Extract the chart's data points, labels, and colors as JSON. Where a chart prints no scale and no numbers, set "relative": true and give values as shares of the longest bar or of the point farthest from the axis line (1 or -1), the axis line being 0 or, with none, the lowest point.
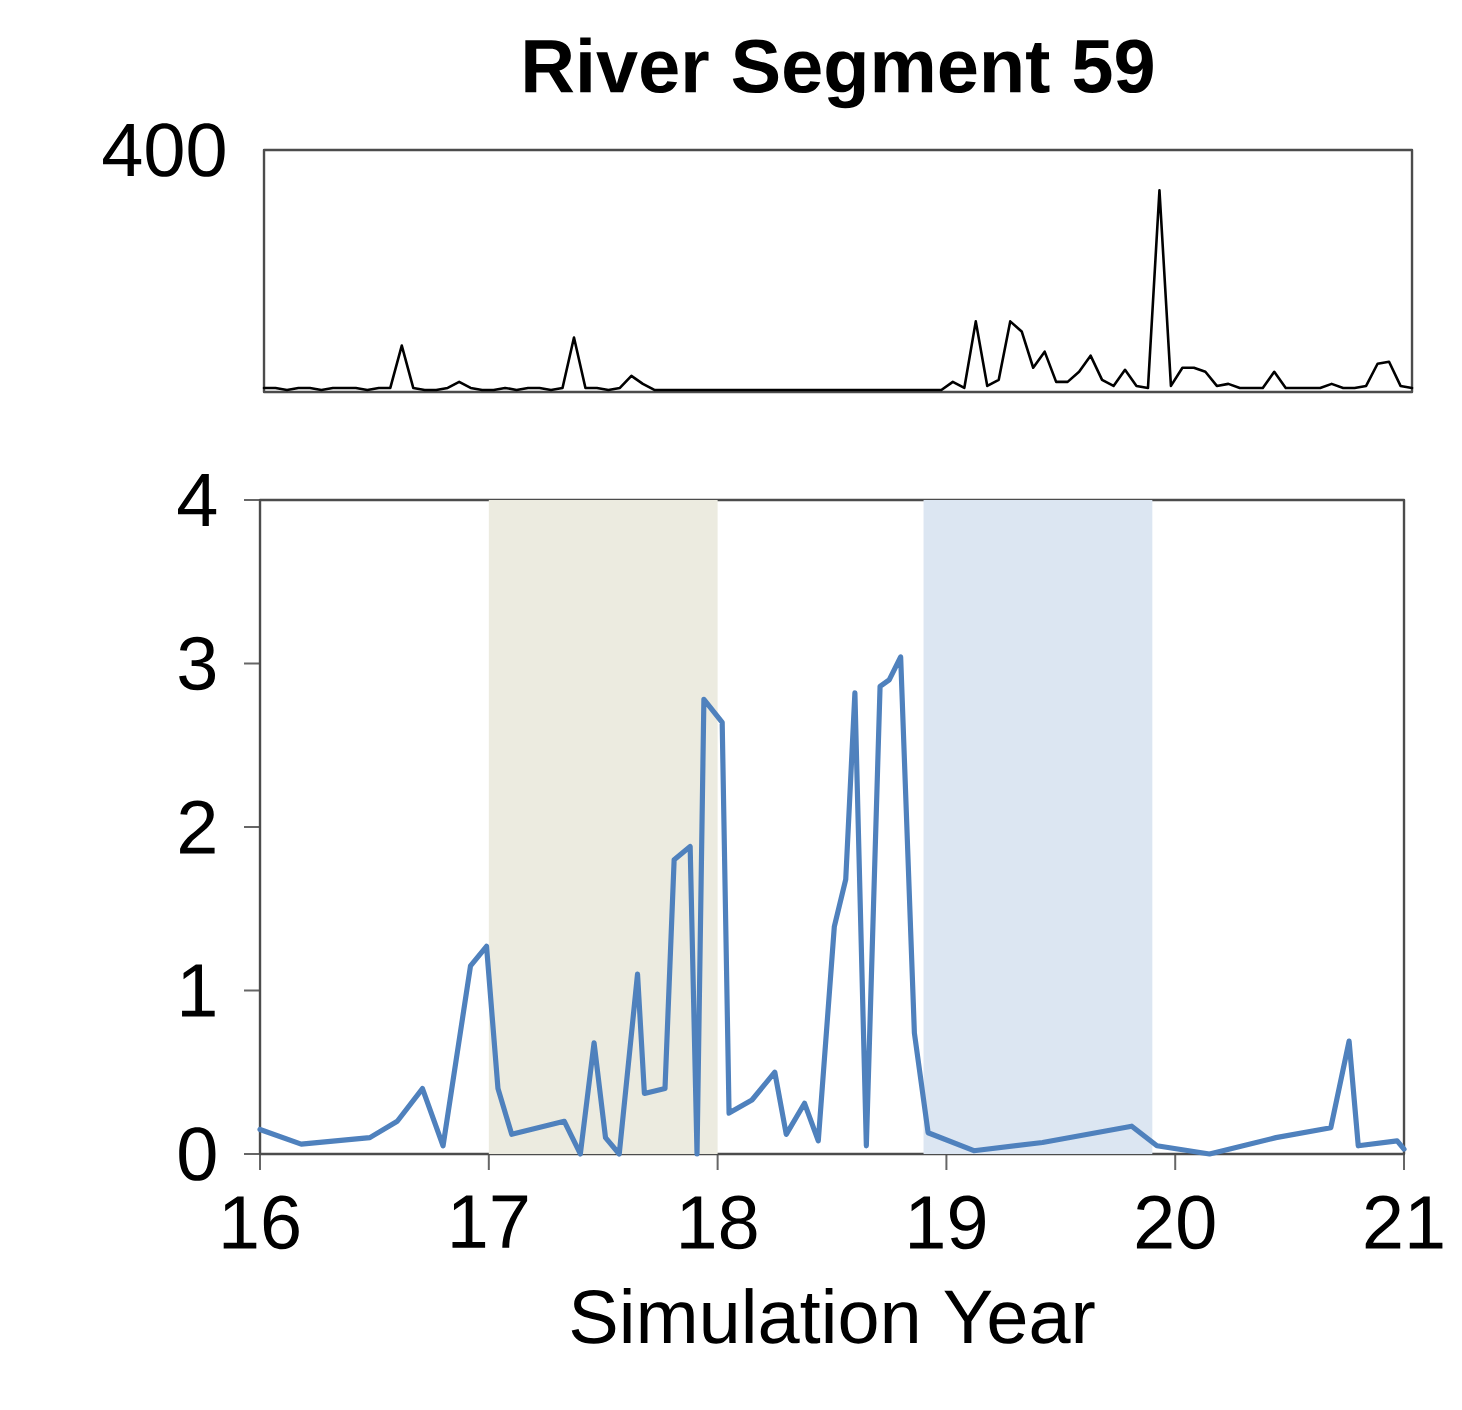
{
  "chart_data": [
    {
      "type": "line",
      "title": "River Segment 59",
      "relative": true,
      "annotations": [
        "400"
      ],
      "categories": [
        null,
        null,
        null,
        null,
        null,
        null,
        null,
        null,
        null,
        null,
        null,
        null,
        null,
        null,
        null,
        null,
        null,
        null,
        null,
        null,
        null,
        null,
        null,
        null,
        null,
        null,
        null,
        null,
        null,
        null,
        null,
        null,
        null,
        null,
        null,
        null,
        null,
        null,
        null,
        null,
        null,
        null,
        null,
        null,
        null,
        null,
        null,
        null,
        null,
        null,
        null,
        null,
        null,
        null,
        null,
        null,
        null,
        null,
        null,
        null,
        null,
        null,
        null,
        null,
        null,
        null,
        null,
        null,
        null,
        null,
        null,
        null,
        null,
        null,
        null,
        null,
        null,
        null,
        null,
        null,
        null,
        null,
        null,
        null,
        null,
        null,
        null,
        null,
        null,
        null,
        null,
        null,
        null,
        null,
        null,
        null,
        null,
        null,
        null,
        null,
        null
      ],
      "series": [
        {
          "color": "#000000",
          "values": [
            0.02,
            0.02,
            0.01,
            0.02,
            0.02,
            0.01,
            0.02,
            0.02,
            0.02,
            0.01,
            0.02,
            0.02,
            0.23,
            0.02,
            0.01,
            0.01,
            0.02,
            0.05,
            0.02,
            0.01,
            0.01,
            0.02,
            0.01,
            0.02,
            0.02,
            0.01,
            0.02,
            0.27,
            0.02,
            0.02,
            0.01,
            0.02,
            0.08,
            0.04,
            0.01,
            0.01,
            0.01,
            0.01,
            0.01,
            0.01,
            0.01,
            0.01,
            0.01,
            0.01,
            0.01,
            0.01,
            0.01,
            0.01,
            0.01,
            0.01,
            0.01,
            0.01,
            0.01,
            0.01,
            0.01,
            0.01,
            0.01,
            0.01,
            0.01,
            0.01,
            0.05,
            0.02,
            0.35,
            0.03,
            0.06,
            0.35,
            0.3,
            0.12,
            0.2,
            0.05,
            0.05,
            0.1,
            0.18,
            0.06,
            0.03,
            0.11,
            0.03,
            0.02,
            1,
            0.03,
            0.12,
            0.12,
            0.1,
            0.03,
            0.04,
            0.02,
            0.02,
            0.02,
            0.1,
            0.02,
            0.02,
            0.02,
            0.02,
            0.04,
            0.02,
            0.02,
            0.03,
            0.14,
            0.15,
            0.03,
            0.02
          ]
        }
      ]
    },
    {
      "type": "line",
      "xlabel": "Simulation Year",
      "xlim": [
        16,
        21
      ],
      "xticks": [
        16,
        17,
        18,
        19,
        20,
        21
      ],
      "ylim": [
        0,
        4
      ],
      "yticks": [
        0,
        1,
        2,
        3,
        4
      ],
      "bands": [
        {
          "axis": "x",
          "from": 17,
          "to": 18,
          "color": "#ecebe0"
        },
        {
          "axis": "x",
          "from": 18.9,
          "to": 19.9,
          "color": "#dce6f2"
        }
      ],
      "series": [
        {
          "color": "#4f81bd",
          "x": [
            16.0,
            16.18,
            16.48,
            16.6,
            16.71,
            16.8,
            16.92,
            16.99,
            17.04,
            17.1,
            17.33,
            17.4,
            17.46,
            17.51,
            17.57,
            17.65,
            17.68,
            17.77,
            17.81,
            17.88,
            17.91,
            17.94,
            18.02,
            18.05,
            18.15,
            18.25,
            18.3,
            18.38,
            18.44,
            18.51,
            18.56,
            18.6,
            18.65,
            18.71,
            18.75,
            18.8,
            18.86,
            18.92,
            19.12,
            19.42,
            19.81,
            19.92,
            20.15,
            20.44,
            20.68,
            20.76,
            20.8,
            20.97,
            21.0
          ],
          "values": [
            0.15,
            0.06,
            0.1,
            0.2,
            0.4,
            0.05,
            1.15,
            1.27,
            0.4,
            0.12,
            0.2,
            0.0,
            0.68,
            0.1,
            0.0,
            1.1,
            0.37,
            0.4,
            1.8,
            1.88,
            0.0,
            2.78,
            2.64,
            0.25,
            0.33,
            0.5,
            0.12,
            0.31,
            0.08,
            1.39,
            1.68,
            2.82,
            0.05,
            2.86,
            2.9,
            3.04,
            0.74,
            0.13,
            0.02,
            0.07,
            0.17,
            0.05,
            0.0,
            0.1,
            0.16,
            0.69,
            0.05,
            0.08,
            0.03
          ]
        }
      ]
    }
  ]
}
